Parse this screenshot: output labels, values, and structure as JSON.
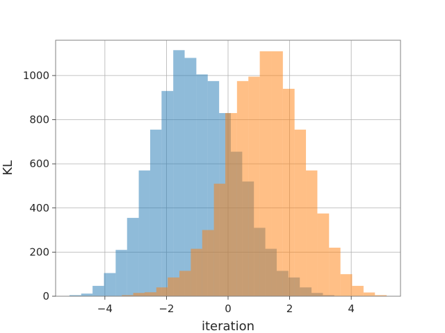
{
  "chart_data": {
    "type": "bar",
    "title": "",
    "xlabel": "iteration",
    "ylabel": "KL",
    "xlim": [
      -5.6,
      5.6
    ],
    "ylim": [
      0,
      1160
    ],
    "xticks": [
      -4,
      -2,
      0,
      2,
      4
    ],
    "xtick_labels": [
      "−4",
      "−2",
      "0",
      "2",
      "4"
    ],
    "yticks": [
      0,
      200,
      400,
      600,
      800,
      1000
    ],
    "ytick_labels": [
      "0",
      "200",
      "400",
      "600",
      "800",
      "1000"
    ],
    "grid": true,
    "legend": "none",
    "series": [
      {
        "color": "#1f77b4",
        "opacity": 0.5,
        "bins": [
          {
            "x0": -5.15,
            "x1": -4.77,
            "y": 5
          },
          {
            "x0": -4.77,
            "x1": -4.4,
            "y": 12
          },
          {
            "x0": -4.4,
            "x1": -4.03,
            "y": 47
          },
          {
            "x0": -4.03,
            "x1": -3.65,
            "y": 105
          },
          {
            "x0": -3.65,
            "x1": -3.28,
            "y": 210
          },
          {
            "x0": -3.28,
            "x1": -2.9,
            "y": 355
          },
          {
            "x0": -2.9,
            "x1": -2.53,
            "y": 570
          },
          {
            "x0": -2.53,
            "x1": -2.16,
            "y": 755
          },
          {
            "x0": -2.16,
            "x1": -1.78,
            "y": 930
          },
          {
            "x0": -1.78,
            "x1": -1.41,
            "y": 1115
          },
          {
            "x0": -1.41,
            "x1": -1.03,
            "y": 1080
          },
          {
            "x0": -1.03,
            "x1": -0.66,
            "y": 1005
          },
          {
            "x0": -0.66,
            "x1": -0.29,
            "y": 975
          },
          {
            "x0": -0.29,
            "x1": 0.09,
            "y": 830
          },
          {
            "x0": 0.09,
            "x1": 0.46,
            "y": 655
          },
          {
            "x0": 0.46,
            "x1": 0.84,
            "y": 520
          },
          {
            "x0": 0.84,
            "x1": 1.21,
            "y": 310
          },
          {
            "x0": 1.21,
            "x1": 1.58,
            "y": 215
          },
          {
            "x0": 1.58,
            "x1": 1.96,
            "y": 115
          },
          {
            "x0": 1.96,
            "x1": 2.33,
            "y": 85
          },
          {
            "x0": 2.33,
            "x1": 2.71,
            "y": 40
          },
          {
            "x0": 2.71,
            "x1": 3.08,
            "y": 15
          },
          {
            "x0": 3.08,
            "x1": 3.45,
            "y": 5
          }
        ]
      },
      {
        "color": "#ff7f0e",
        "opacity": 0.5,
        "bins": [
          {
            "x0": -3.45,
            "x1": -3.08,
            "y": 5
          },
          {
            "x0": -3.08,
            "x1": -2.71,
            "y": 15
          },
          {
            "x0": -2.71,
            "x1": -2.33,
            "y": 18
          },
          {
            "x0": -2.33,
            "x1": -1.96,
            "y": 40
          },
          {
            "x0": -1.96,
            "x1": -1.58,
            "y": 85
          },
          {
            "x0": -1.58,
            "x1": -1.21,
            "y": 115
          },
          {
            "x0": -1.21,
            "x1": -0.84,
            "y": 215
          },
          {
            "x0": -0.84,
            "x1": -0.46,
            "y": 300
          },
          {
            "x0": -0.46,
            "x1": -0.09,
            "y": 510
          },
          {
            "x0": -0.09,
            "x1": 0.29,
            "y": 830
          },
          {
            "x0": 0.29,
            "x1": 0.66,
            "y": 975
          },
          {
            "x0": 0.66,
            "x1": 1.03,
            "y": 995
          },
          {
            "x0": 1.03,
            "x1": 1.41,
            "y": 1110
          },
          {
            "x0": 1.41,
            "x1": 1.78,
            "y": 1110
          },
          {
            "x0": 1.78,
            "x1": 2.16,
            "y": 940
          },
          {
            "x0": 2.16,
            "x1": 2.53,
            "y": 755
          },
          {
            "x0": 2.53,
            "x1": 2.9,
            "y": 570
          },
          {
            "x0": 2.9,
            "x1": 3.28,
            "y": 375
          },
          {
            "x0": 3.28,
            "x1": 3.65,
            "y": 220
          },
          {
            "x0": 3.65,
            "x1": 4.03,
            "y": 100
          },
          {
            "x0": 4.03,
            "x1": 4.4,
            "y": 47
          },
          {
            "x0": 4.4,
            "x1": 4.77,
            "y": 17
          },
          {
            "x0": 4.77,
            "x1": 5.15,
            "y": 5
          }
        ]
      }
    ]
  }
}
